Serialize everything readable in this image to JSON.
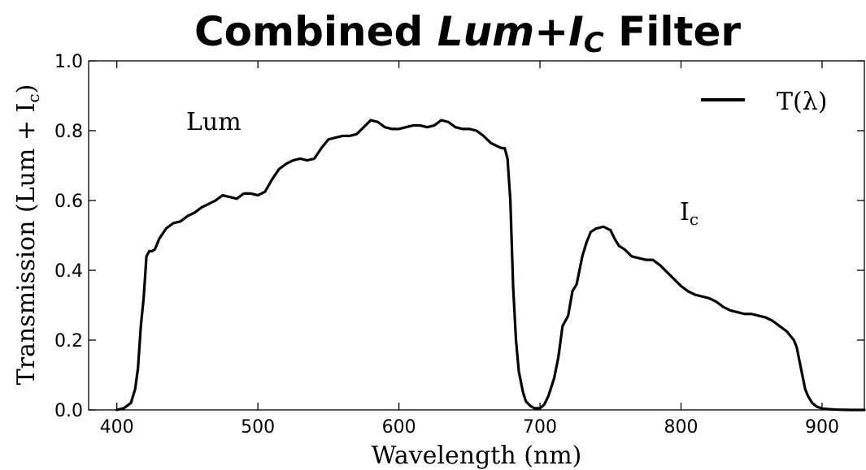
{
  "chart_data": {
    "type": "line",
    "title": {
      "prefix": "Combined ",
      "main": "Lum+I",
      "sub": "C",
      "suffix": " Filter"
    },
    "xlabel": "Wavelength (nm)",
    "ylabel": {
      "main": "Transmission (Lum + I",
      "sub": "c",
      "end": ")"
    },
    "xlim": [
      380,
      930
    ],
    "ylim": [
      0.0,
      1.0
    ],
    "xticks": [
      400,
      500,
      600,
      700,
      800,
      900
    ],
    "xtick_labels": [
      "400",
      "500",
      "600",
      "700",
      "800",
      "900"
    ],
    "yticks": [
      0.0,
      0.2,
      0.4,
      0.6,
      0.8,
      1.0
    ],
    "ytick_labels": [
      "0.0",
      "0.2",
      "0.4",
      "0.6",
      "0.8",
      "1.0"
    ],
    "grid": false,
    "legend_position": "upper right",
    "annotations": [
      {
        "text": "Lum",
        "x": 451,
        "y": 0.81
      },
      {
        "text": "I",
        "sub": "c",
        "x": 838,
        "y": 0.55
      }
    ],
    "series": [
      {
        "name": "T(λ)",
        "color": "#000000",
        "x": [
          400,
          405,
          410,
          413,
          415,
          417,
          419,
          421,
          423,
          425,
          427,
          430,
          435,
          440,
          445,
          450,
          455,
          460,
          465,
          470,
          475,
          480,
          485,
          490,
          495,
          500,
          505,
          510,
          515,
          520,
          525,
          530,
          535,
          540,
          545,
          550,
          555,
          560,
          565,
          570,
          575,
          580,
          585,
          590,
          595,
          600,
          605,
          610,
          615,
          620,
          625,
          630,
          635,
          640,
          645,
          650,
          655,
          660,
          665,
          670,
          673,
          675,
          677,
          679,
          681,
          683,
          685,
          688,
          690,
          693,
          696,
          700,
          703,
          706,
          710,
          713,
          716,
          720,
          723,
          726,
          730,
          733,
          736,
          740,
          745,
          750,
          753,
          756,
          760,
          765,
          770,
          775,
          780,
          785,
          790,
          795,
          800,
          805,
          810,
          815,
          820,
          825,
          830,
          835,
          840,
          845,
          850,
          855,
          860,
          865,
          870,
          875,
          880,
          882,
          884,
          886,
          888,
          890,
          893,
          896,
          900,
          905,
          910,
          920,
          930
        ],
        "y": [
          0.0,
          0.005,
          0.02,
          0.06,
          0.12,
          0.24,
          0.32,
          0.44,
          0.455,
          0.455,
          0.46,
          0.49,
          0.52,
          0.535,
          0.54,
          0.555,
          0.565,
          0.58,
          0.59,
          0.6,
          0.615,
          0.61,
          0.605,
          0.62,
          0.62,
          0.615,
          0.625,
          0.66,
          0.69,
          0.705,
          0.715,
          0.72,
          0.715,
          0.72,
          0.75,
          0.775,
          0.78,
          0.785,
          0.785,
          0.79,
          0.81,
          0.83,
          0.825,
          0.81,
          0.805,
          0.805,
          0.81,
          0.815,
          0.815,
          0.81,
          0.815,
          0.83,
          0.825,
          0.81,
          0.805,
          0.805,
          0.8,
          0.785,
          0.765,
          0.755,
          0.75,
          0.75,
          0.72,
          0.6,
          0.35,
          0.2,
          0.11,
          0.05,
          0.025,
          0.012,
          0.005,
          0.005,
          0.015,
          0.04,
          0.09,
          0.15,
          0.24,
          0.27,
          0.34,
          0.36,
          0.44,
          0.48,
          0.51,
          0.52,
          0.525,
          0.515,
          0.49,
          0.47,
          0.46,
          0.44,
          0.435,
          0.43,
          0.43,
          0.415,
          0.395,
          0.375,
          0.355,
          0.34,
          0.33,
          0.325,
          0.32,
          0.31,
          0.295,
          0.285,
          0.28,
          0.275,
          0.275,
          0.27,
          0.265,
          0.255,
          0.24,
          0.225,
          0.2,
          0.18,
          0.14,
          0.1,
          0.06,
          0.04,
          0.02,
          0.01,
          0.004,
          0.002,
          0.001,
          0.0,
          0.0
        ]
      }
    ]
  }
}
